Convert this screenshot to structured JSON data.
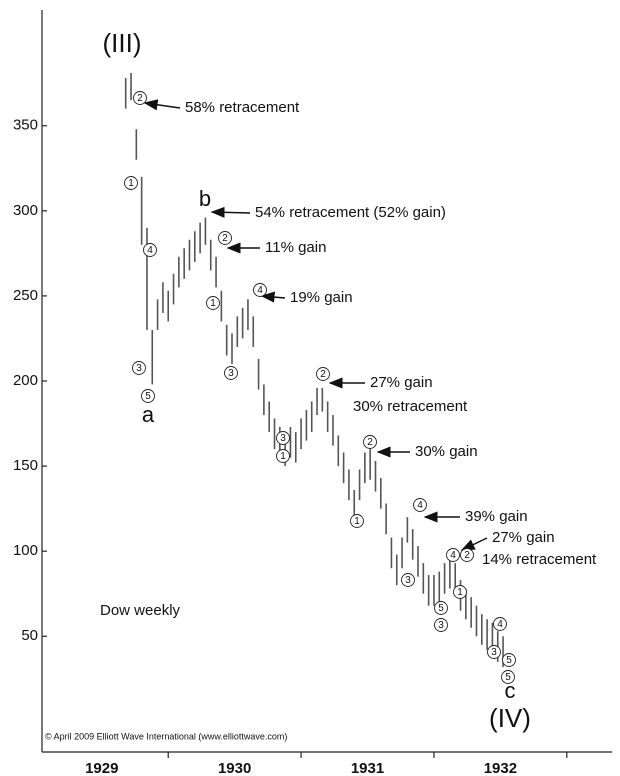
{
  "chart_data": {
    "type": "range-bar",
    "title": "Dow weekly",
    "footnote": "© April 2009 Elliott Wave International (www.elliottwave.com)",
    "x": [
      1929.68,
      1929.72,
      1929.76,
      1929.8,
      1929.84,
      1929.88,
      1929.92,
      1929.96,
      1930.0,
      1930.04,
      1930.08,
      1930.12,
      1930.16,
      1930.2,
      1930.24,
      1930.28,
      1930.32,
      1930.36,
      1930.4,
      1930.44,
      1930.48,
      1930.52,
      1930.56,
      1930.6,
      1930.64,
      1930.68,
      1930.72,
      1930.76,
      1930.8,
      1930.84,
      1930.88,
      1930.92,
      1930.96,
      1931.0,
      1931.04,
      1931.08,
      1931.12,
      1931.16,
      1931.2,
      1931.24,
      1931.28,
      1931.32,
      1931.36,
      1931.4,
      1931.44,
      1931.48,
      1931.52,
      1931.56,
      1931.6,
      1931.64,
      1931.68,
      1931.72,
      1931.76,
      1931.8,
      1931.84,
      1931.88,
      1931.92,
      1931.96,
      1932.0,
      1932.04,
      1932.08,
      1932.12,
      1932.16,
      1932.2,
      1932.24,
      1932.28,
      1932.32,
      1932.36,
      1932.4,
      1932.44,
      1932.48,
      1932.52
    ],
    "series": [
      {
        "color": "#555555",
        "high": [
          378,
          381,
          348,
          320,
          290,
          230,
          248,
          258,
          253,
          263,
          273,
          278,
          283,
          288,
          293,
          296,
          283,
          273,
          253,
          233,
          228,
          238,
          243,
          248,
          238,
          213,
          198,
          188,
          178,
          173,
          168,
          173,
          170,
          178,
          183,
          188,
          196,
          196,
          188,
          180,
          168,
          158,
          148,
          136,
          148,
          158,
          160,
          153,
          143,
          128,
          108,
          98,
          108,
          120,
          113,
          103,
          93,
          86,
          86,
          88,
          93,
          96,
          93,
          83,
          78,
          73,
          68,
          63,
          60,
          58,
          53,
          50
        ],
        "low": [
          360,
          365,
          330,
          280,
          230,
          198,
          230,
          240,
          235,
          245,
          255,
          260,
          265,
          270,
          275,
          280,
          265,
          255,
          235,
          215,
          210,
          220,
          225,
          230,
          220,
          195,
          180,
          170,
          160,
          155,
          150,
          155,
          152,
          160,
          165,
          170,
          180,
          182,
          170,
          162,
          150,
          140,
          130,
          118,
          130,
          140,
          142,
          135,
          125,
          110,
          90,
          80,
          90,
          105,
          95,
          85,
          75,
          68,
          68,
          70,
          75,
          78,
          75,
          65,
          60,
          55,
          50,
          45,
          42,
          40,
          35,
          32
        ]
      }
    ],
    "xlim": [
      1929.05,
      1933.34
    ],
    "xticks": [
      {
        "value": 1929.5,
        "label": "1929"
      },
      {
        "value": 1930.5,
        "label": "1930"
      },
      {
        "value": 1931.5,
        "label": "1931"
      },
      {
        "value": 1932.5,
        "label": "1932"
      }
    ],
    "x_tick_marks": [
      1930,
      1931,
      1932,
      1933
    ],
    "ylim": [
      -18,
      418
    ],
    "yticks": [
      50,
      100,
      150,
      200,
      250,
      300,
      350
    ],
    "wave_labels": [
      "(III)",
      "a",
      "b",
      "c",
      "(IV)"
    ],
    "annotations": [
      "58% retracement",
      "54% retracement (52% gain)",
      "11% gain",
      "19% gain",
      "27% gain",
      "30% retracement",
      "30% gain",
      "39% gain",
      "27% gain",
      "14% retracement"
    ],
    "circled": [
      "2",
      "1",
      "4",
      "3",
      "5",
      "2",
      "1",
      "3",
      "4",
      "3",
      "1",
      "2",
      "2",
      "1",
      "4",
      "3",
      "5",
      "3",
      "4",
      "2",
      "1",
      "4",
      "3",
      "5",
      "5"
    ]
  }
}
